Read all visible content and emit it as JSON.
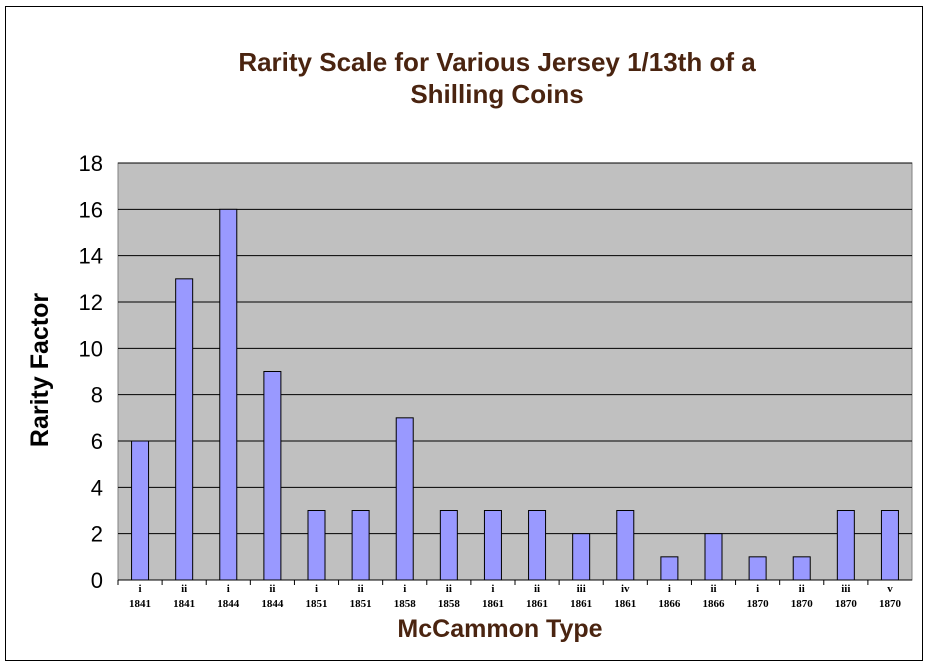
{
  "chart_data": {
    "type": "bar",
    "title_line1": "Rarity Scale for Various Jersey 1/13th of a",
    "title_line2": "Shilling Coins",
    "xlabel": "McCammon Type",
    "ylabel": "Rarity Factor",
    "ylim": [
      0,
      18
    ],
    "yticks": [
      "0",
      "2",
      "4",
      "6",
      "8",
      "10",
      "12",
      "14",
      "16",
      "18"
    ],
    "grid": true,
    "categories": [
      {
        "type": "i",
        "year": "1841"
      },
      {
        "type": "ii",
        "year": "1841"
      },
      {
        "type": "i",
        "year": "1844"
      },
      {
        "type": "ii",
        "year": "1844"
      },
      {
        "type": "i",
        "year": "1851"
      },
      {
        "type": "ii",
        "year": "1851"
      },
      {
        "type": "i",
        "year": "1858"
      },
      {
        "type": "ii",
        "year": "1858"
      },
      {
        "type": "i",
        "year": "1861"
      },
      {
        "type": "ii",
        "year": "1861"
      },
      {
        "type": "iii",
        "year": "1861"
      },
      {
        "type": "iv",
        "year": "1861"
      },
      {
        "type": "i",
        "year": "1866"
      },
      {
        "type": "ii",
        "year": "1866"
      },
      {
        "type": "i",
        "year": "1870"
      },
      {
        "type": "ii",
        "year": "1870"
      },
      {
        "type": "iii",
        "year": "1870"
      },
      {
        "type": "v",
        "year": "1870"
      }
    ],
    "values": [
      6,
      13,
      16,
      9,
      3,
      3,
      7,
      3,
      3,
      3,
      2,
      3,
      1,
      2,
      1,
      1,
      3,
      3
    ],
    "colors": {
      "bar": "#9999ff",
      "plot_background": "#c0c0c0",
      "title": "#4a2410"
    }
  }
}
